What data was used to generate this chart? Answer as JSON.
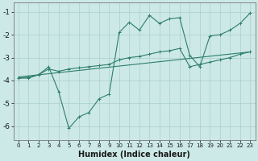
{
  "xlabel": "Humidex (Indice chaleur)",
  "bg_color": "#cce9e7",
  "line_color": "#2e7d6e",
  "grid_color": "#aacfcc",
  "xlim": [
    -0.5,
    23.5
  ],
  "ylim": [
    -6.6,
    -0.6
  ],
  "yticks": [
    -6,
    -5,
    -4,
    -3,
    -2,
    -1
  ],
  "xticks": [
    0,
    1,
    2,
    3,
    4,
    5,
    6,
    7,
    8,
    9,
    10,
    11,
    12,
    13,
    14,
    15,
    16,
    17,
    18,
    19,
    20,
    21,
    22,
    23
  ],
  "line1_x": [
    0,
    1,
    2,
    3,
    4,
    5,
    6,
    7,
    8,
    9,
    10,
    11,
    12,
    13,
    14,
    15,
    16,
    17,
    18,
    19,
    20,
    21,
    22,
    23
  ],
  "line1_y": [
    -3.9,
    -3.9,
    -3.75,
    -3.4,
    -4.5,
    -6.1,
    -5.6,
    -5.4,
    -4.8,
    -4.6,
    -1.9,
    -1.45,
    -1.8,
    -1.15,
    -1.5,
    -1.3,
    -1.25,
    -2.9,
    -3.4,
    -2.05,
    -2.0,
    -1.8,
    -1.5,
    -1.05
  ],
  "line2_x": [
    0,
    1,
    2,
    3,
    4,
    5,
    6,
    7,
    8,
    9,
    10,
    11,
    12,
    13,
    14,
    15,
    16,
    17,
    18,
    19,
    20,
    21,
    22,
    23
  ],
  "line2_y": [
    -3.9,
    -3.85,
    -3.75,
    -3.5,
    -3.6,
    -3.5,
    -3.45,
    -3.4,
    -3.35,
    -3.3,
    -3.1,
    -3.0,
    -2.95,
    -2.85,
    -2.75,
    -2.7,
    -2.6,
    -3.4,
    -3.3,
    -3.2,
    -3.1,
    -3.0,
    -2.85,
    -2.75
  ],
  "line3_x": [
    0,
    23
  ],
  "line3_y": [
    -3.85,
    -2.75
  ]
}
